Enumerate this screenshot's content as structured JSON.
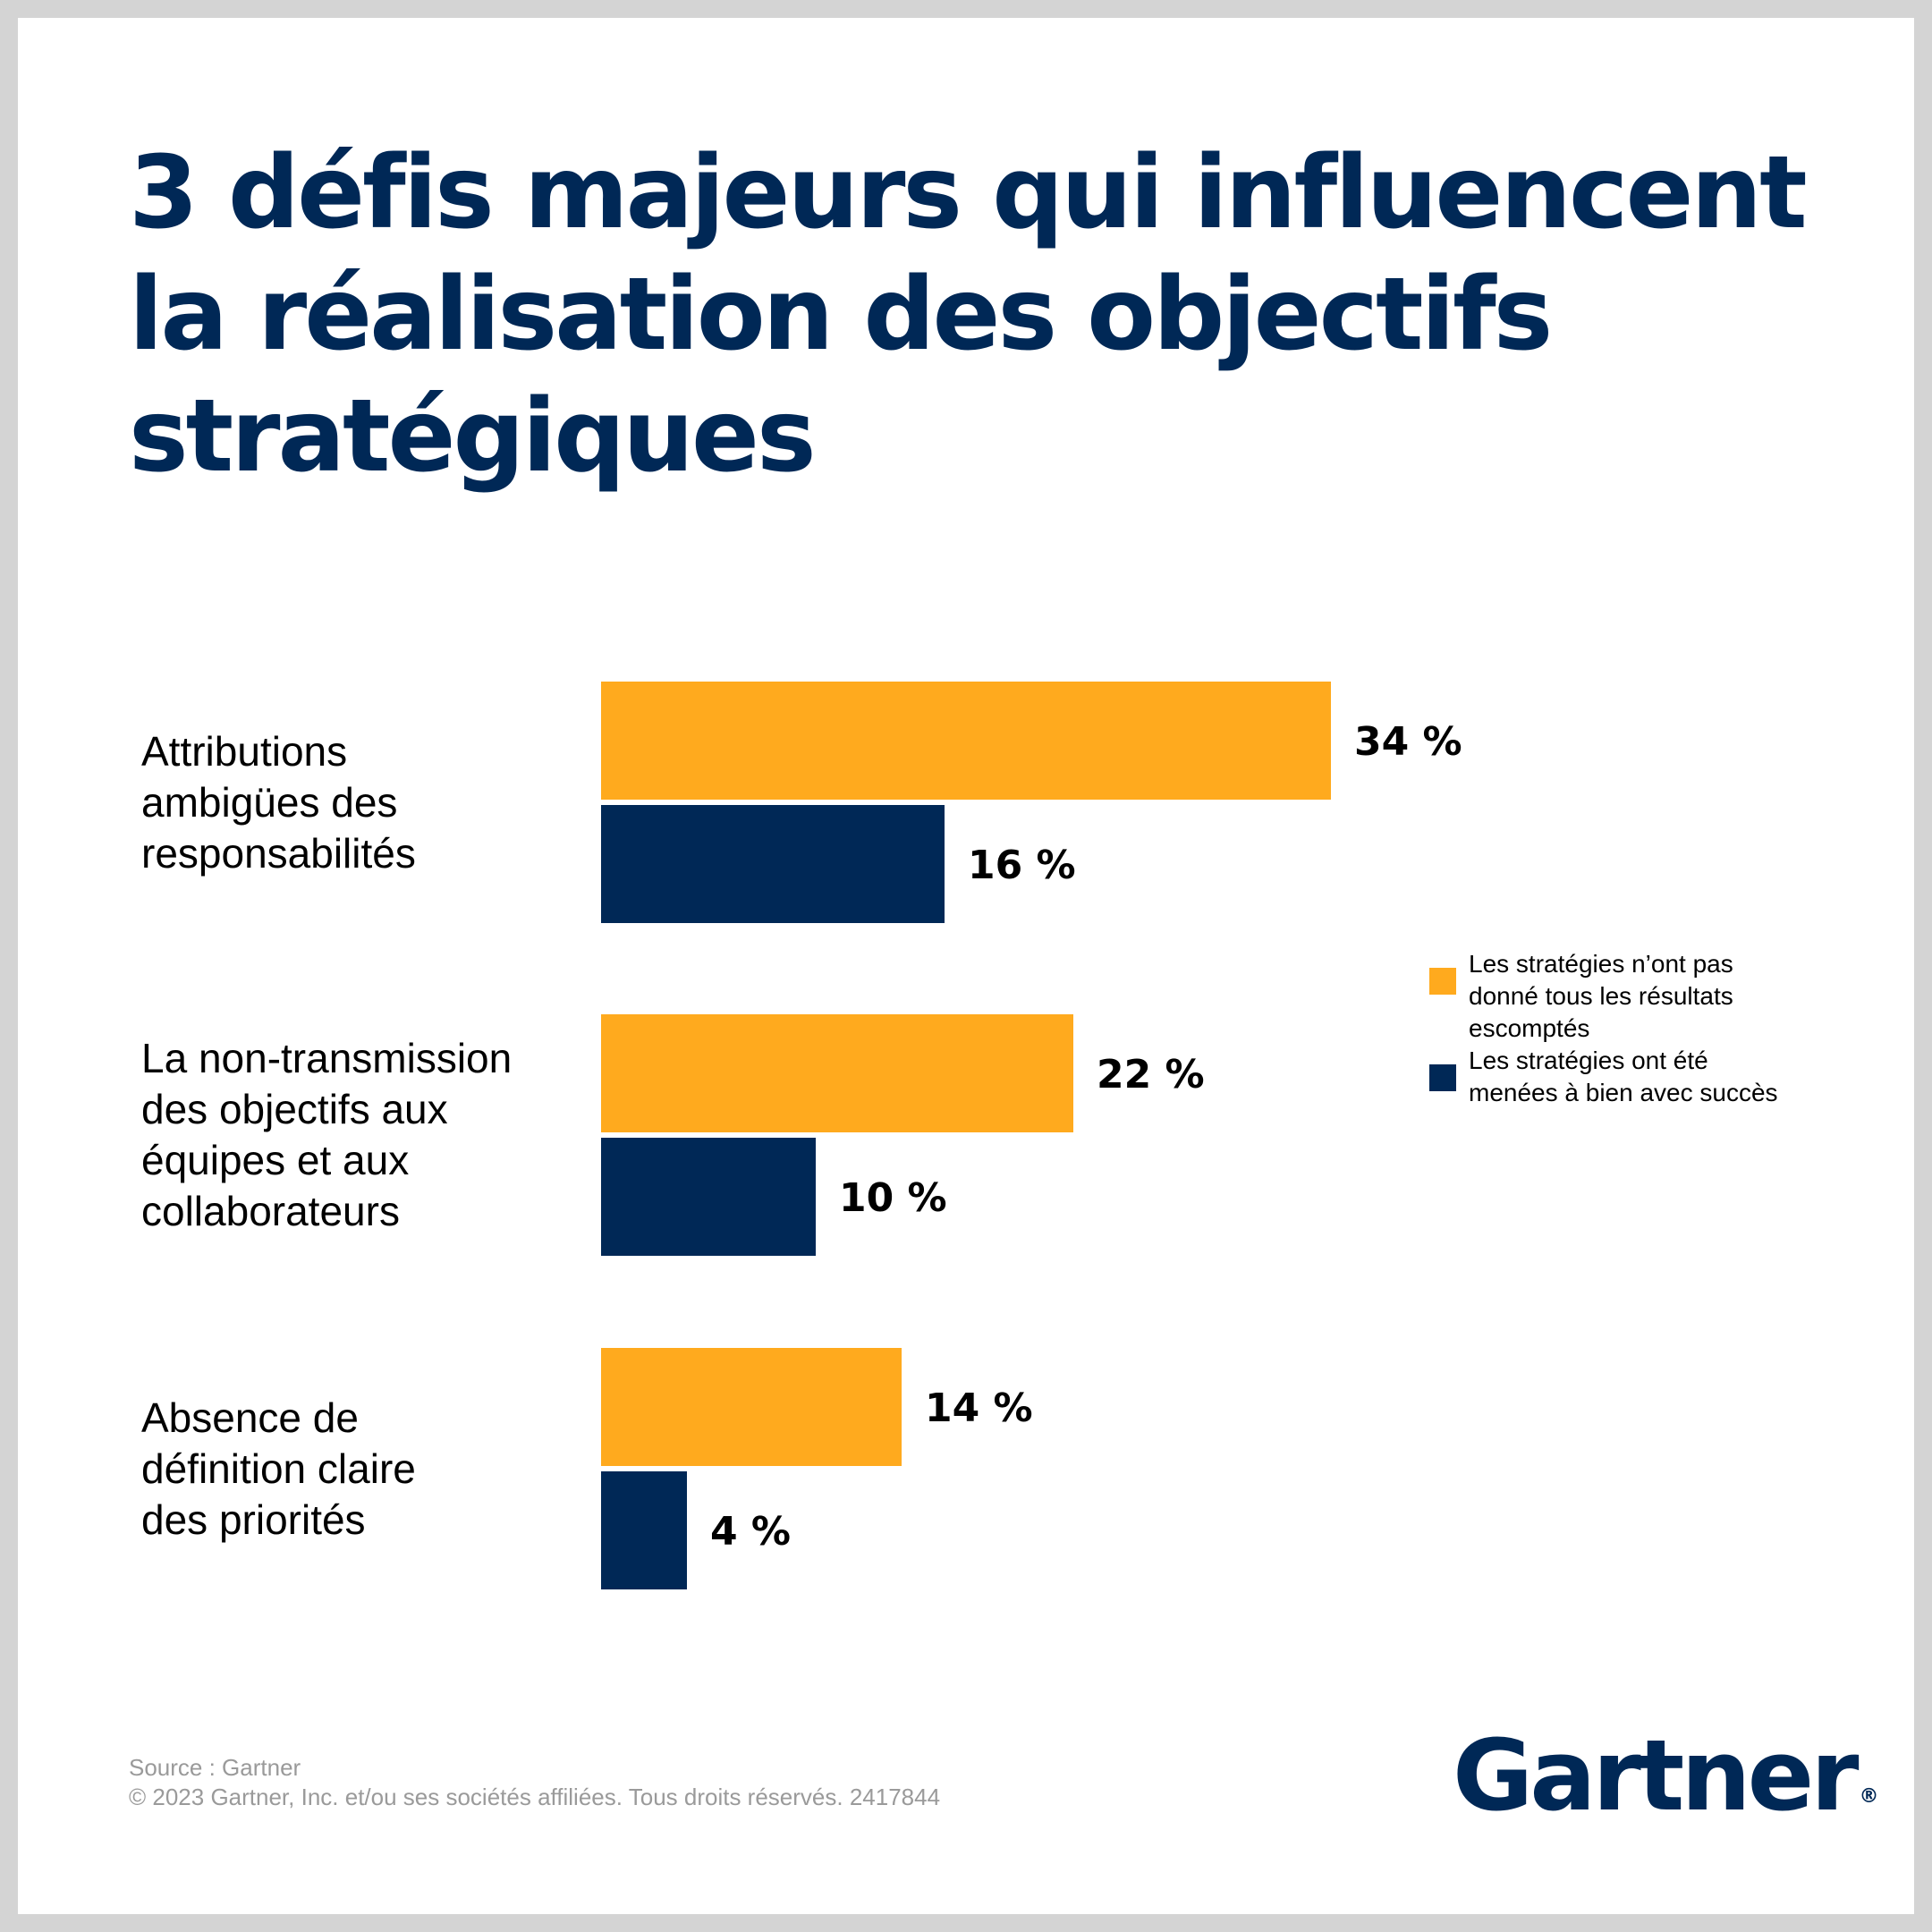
{
  "title_lines": [
    "3 défis majeurs qui influencent",
    "la réalisation des objectifs",
    "stratégiques"
  ],
  "chart_data": {
    "type": "bar",
    "orientation": "horizontal",
    "categories": [
      [
        "Attributions",
        "ambigües des",
        "responsabilités"
      ],
      [
        "La non-transmission",
        "des objectifs aux",
        "équipes et aux",
        "collaborateurs"
      ],
      [
        "Absence de",
        "définition claire",
        "des priorités"
      ]
    ],
    "series": [
      {
        "name_lines": [
          "Les stratégies n’ont pas",
          "donné tous les résultats",
          "escomptés"
        ],
        "color": "#FFAA1E",
        "values": [
          34,
          22,
          14
        ],
        "labels": [
          "34 %",
          "22 %",
          "14 %"
        ]
      },
      {
        "name_lines": [
          "Les stratégies ont été",
          "menées à bien avec succès"
        ],
        "color": "#002856",
        "values": [
          16,
          10,
          4
        ],
        "labels": [
          "16 %",
          "10 %",
          "4 %"
        ]
      }
    ],
    "legend_position": "right",
    "grid": false,
    "unit": "%"
  },
  "footer": {
    "source": "Source : Gartner",
    "copyright": "© 2023 Gartner, Inc. et/ou ses sociétés affiliées. Tous droits réservés. 2417844"
  },
  "logo": {
    "text": "Gartner",
    "mark": "®"
  }
}
